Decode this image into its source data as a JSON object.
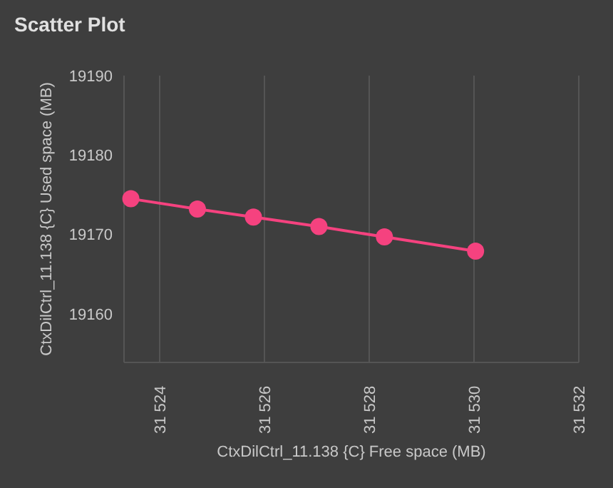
{
  "chart_data": {
    "type": "line",
    "title": "Scatter Plot",
    "xlabel": "CtxDilCtrl_11.138 {C} Free space (MB)",
    "ylabel": "CtxDilCtrl_11.138 {C} Used space (MB)",
    "x": [
      31523.45,
      31524.72,
      31525.79,
      31527.04,
      31528.29,
      31530.03
    ],
    "series": [
      {
        "color": "#f5427f",
        "values": [
          19174.5,
          19173.2,
          19172.2,
          19171.0,
          19169.7,
          19167.9
        ]
      }
    ],
    "xlim": [
      31523.32,
      31532
    ],
    "xticks": [
      {
        "value": 31524,
        "label": "31 524"
      },
      {
        "value": 31526,
        "label": "31 526"
      },
      {
        "value": 31528,
        "label": "31 528"
      },
      {
        "value": 31530,
        "label": "31 530"
      },
      {
        "value": 31532,
        "label": "31 532"
      }
    ],
    "ylim": [
      19153.9,
      19190
    ],
    "yticks": [
      19160,
      19170,
      19180,
      19190
    ],
    "grid": "x",
    "marker": "circle",
    "line_style": "solid"
  }
}
